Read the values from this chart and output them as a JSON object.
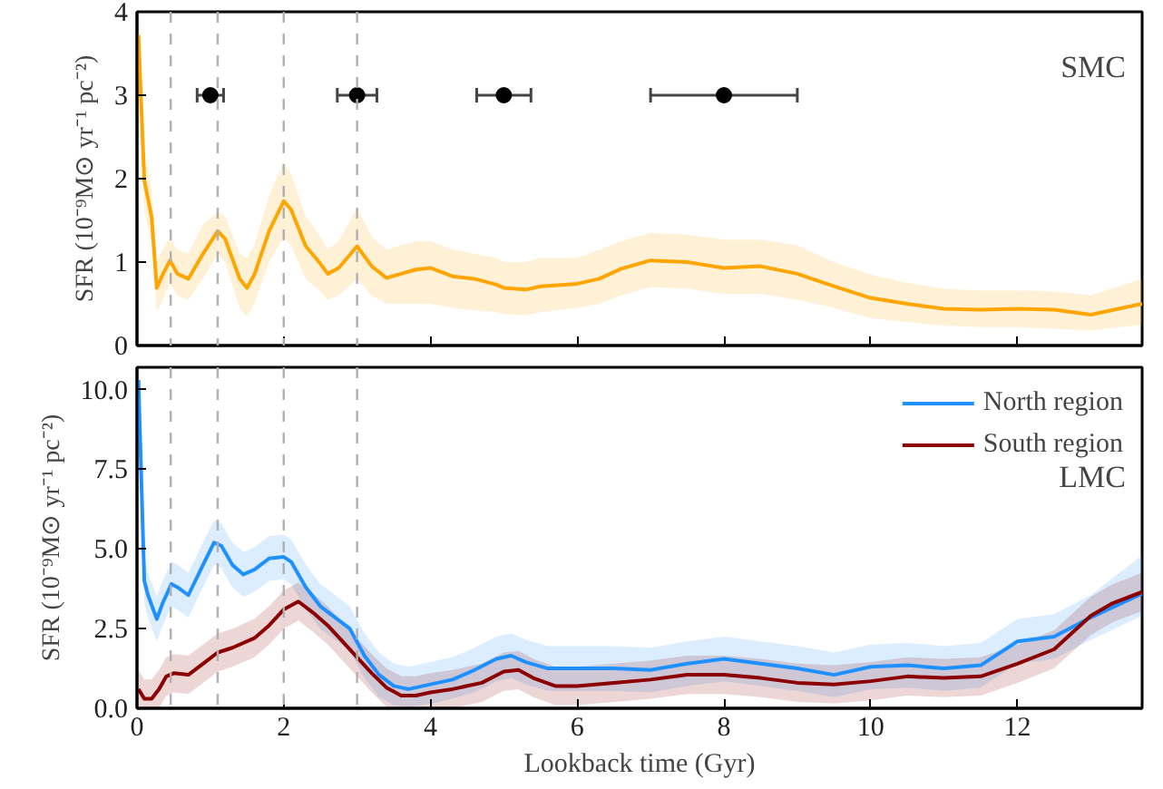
{
  "chart_data": [
    {
      "type": "line",
      "ylabel": "SFR (10⁻⁹M⊙ yr⁻¹ pc⁻²)",
      "xlim": [
        0,
        13.7
      ],
      "xticks": [
        0,
        2,
        4,
        6,
        8,
        10,
        12
      ],
      "ylim": [
        0,
        4
      ],
      "yticks": [
        0,
        1,
        2,
        3,
        4
      ],
      "tick_labels": "y",
      "grid": false,
      "legend": false,
      "annotations": [
        "SMC"
      ],
      "ref_lines": [
        {
          "axis": "x",
          "value": 0.46,
          "color": "#b0b0b0",
          "line_style": "dashed"
        },
        {
          "axis": "x",
          "value": 1.1,
          "color": "#b0b0b0",
          "line_style": "dashed"
        },
        {
          "axis": "x",
          "value": 2,
          "color": "#b0b0b0",
          "line_style": "dashed"
        },
        {
          "axis": "x",
          "value": 3,
          "color": "#b0b0b0",
          "line_style": "dashed"
        }
      ],
      "series": [
        {
          "color": "#ffa500",
          "x": [
            0.02,
            0.1,
            0.2,
            0.27,
            0.35,
            0.45,
            0.55,
            0.7,
            0.9,
            1.1,
            1.2,
            1.4,
            1.5,
            1.6,
            1.8,
            2.0,
            2.1,
            2.3,
            2.5,
            2.6,
            2.75,
            3.0,
            3.2,
            3.4,
            3.6,
            3.8,
            4.0,
            4.3,
            4.6,
            4.9,
            5.0,
            5.3,
            5.5,
            6.0,
            6.3,
            6.6,
            7.0,
            7.5,
            8.0,
            8.5,
            9.0,
            9.5,
            10.0,
            10.5,
            11.0,
            11.5,
            12.0,
            12.5,
            13.0,
            13.7
          ],
          "values": [
            3.72,
            1.98,
            1.54,
            0.69,
            0.85,
            1.02,
            0.86,
            0.8,
            1.1,
            1.37,
            1.28,
            0.8,
            0.69,
            0.85,
            1.37,
            1.73,
            1.63,
            1.19,
            0.98,
            0.86,
            0.93,
            1.19,
            0.95,
            0.81,
            0.86,
            0.91,
            0.93,
            0.83,
            0.8,
            0.73,
            0.69,
            0.67,
            0.71,
            0.74,
            0.8,
            0.92,
            1.02,
            1.0,
            0.93,
            0.95,
            0.86,
            0.71,
            0.57,
            0.5,
            0.44,
            0.43,
            0.44,
            0.43,
            0.37,
            0.5
          ],
          "upper": [
            4.0,
            2.3,
            1.85,
            1.0,
            1.15,
            1.3,
            1.15,
            1.1,
            1.45,
            1.6,
            1.55,
            1.1,
            1.05,
            1.2,
            1.8,
            2.2,
            2.05,
            1.55,
            1.3,
            1.15,
            1.25,
            1.65,
            1.3,
            1.15,
            1.2,
            1.25,
            1.25,
            1.15,
            1.1,
            1.05,
            1.0,
            1.0,
            1.05,
            1.05,
            1.15,
            1.25,
            1.35,
            1.33,
            1.27,
            1.27,
            1.2,
            1.0,
            0.85,
            0.75,
            0.68,
            0.66,
            0.66,
            0.65,
            0.6,
            0.8
          ],
          "lower": [
            3.3,
            1.6,
            1.25,
            0.4,
            0.55,
            0.75,
            0.6,
            0.55,
            0.8,
            1.1,
            1.0,
            0.45,
            0.35,
            0.5,
            1.0,
            1.3,
            1.2,
            0.8,
            0.65,
            0.55,
            0.6,
            0.8,
            0.6,
            0.5,
            0.5,
            0.5,
            0.5,
            0.45,
            0.42,
            0.4,
            0.38,
            0.36,
            0.4,
            0.45,
            0.5,
            0.6,
            0.7,
            0.68,
            0.62,
            0.62,
            0.55,
            0.45,
            0.33,
            0.28,
            0.24,
            0.22,
            0.22,
            0.2,
            0.18,
            0.25
          ]
        },
        {
          "type": "scatter",
          "color": "#000000",
          "marker": "circle",
          "x": [
            1,
            3,
            5,
            8
          ],
          "values": [
            3,
            3,
            3,
            3
          ],
          "xerrors": [
            0.18,
            0.27,
            0.37,
            1.0
          ]
        }
      ]
    },
    {
      "type": "line",
      "xlabel": "Lookback time (Gyr)",
      "ylabel": "SFR (10⁻⁹M⊙ yr⁻¹ pc⁻²)",
      "xlim": [
        0,
        13.7
      ],
      "xticks": [
        0,
        2,
        4,
        6,
        8,
        10,
        12
      ],
      "ylim": [
        0,
        10.7
      ],
      "yticks": [
        {
          "value": 0,
          "label": "0.0"
        },
        {
          "value": 2.5,
          "label": "2.5"
        },
        {
          "value": 5,
          "label": "5.0"
        },
        {
          "value": 7.5,
          "label": "7.5"
        },
        {
          "value": 10,
          "label": "10.0"
        }
      ],
      "grid": false,
      "legend": "top right",
      "annotations": [
        "LMC"
      ],
      "ref_lines": [
        {
          "axis": "x",
          "value": 0.46,
          "color": "#b0b0b0",
          "line_style": "dashed"
        },
        {
          "axis": "x",
          "value": 1.1,
          "color": "#b0b0b0",
          "line_style": "dashed"
        },
        {
          "axis": "x",
          "value": 2,
          "color": "#b0b0b0",
          "line_style": "dashed"
        },
        {
          "axis": "x",
          "value": 3,
          "color": "#b0b0b0",
          "line_style": "dashed"
        }
      ],
      "series": [
        {
          "name": "North region",
          "color": "#1e90ff",
          "x": [
            0.02,
            0.1,
            0.15,
            0.27,
            0.35,
            0.47,
            0.55,
            0.7,
            0.9,
            1.05,
            1.15,
            1.3,
            1.45,
            1.6,
            1.8,
            2.0,
            2.1,
            2.3,
            2.5,
            2.7,
            2.9,
            3.1,
            3.3,
            3.5,
            3.7,
            4.0,
            4.3,
            4.6,
            4.9,
            5.1,
            5.3,
            5.6,
            6.0,
            6.5,
            7.0,
            7.5,
            8.0,
            8.5,
            9.0,
            9.5,
            10.0,
            10.5,
            11.0,
            11.5,
            12.0,
            12.5,
            13.0,
            13.7
          ],
          "values": [
            10.3,
            4.0,
            3.55,
            2.8,
            3.3,
            3.9,
            3.8,
            3.55,
            4.5,
            5.2,
            5.1,
            4.5,
            4.2,
            4.35,
            4.7,
            4.75,
            4.6,
            3.8,
            3.2,
            2.85,
            2.5,
            1.65,
            1.05,
            0.7,
            0.6,
            0.75,
            0.9,
            1.2,
            1.55,
            1.65,
            1.45,
            1.25,
            1.25,
            1.25,
            1.2,
            1.4,
            1.55,
            1.4,
            1.25,
            1.05,
            1.3,
            1.35,
            1.25,
            1.35,
            2.1,
            2.25,
            2.85,
            3.6
          ],
          "upper": [
            10.6,
            4.7,
            4.25,
            3.5,
            4.0,
            4.6,
            4.5,
            4.25,
            5.2,
            5.9,
            5.8,
            5.2,
            4.9,
            5.05,
            5.4,
            5.45,
            5.3,
            4.5,
            3.9,
            3.55,
            3.2,
            2.35,
            1.75,
            1.4,
            1.3,
            1.45,
            1.6,
            1.9,
            2.25,
            2.35,
            2.15,
            1.95,
            1.95,
            1.95,
            1.9,
            2.1,
            2.25,
            2.1,
            1.95,
            1.75,
            2.0,
            2.05,
            1.95,
            2.05,
            2.8,
            2.95,
            3.55,
            4.8
          ],
          "lower": [
            10.0,
            3.3,
            2.85,
            2.1,
            2.6,
            3.2,
            3.1,
            2.85,
            3.8,
            4.5,
            4.4,
            3.8,
            3.5,
            3.65,
            4.0,
            4.05,
            3.9,
            3.1,
            2.5,
            2.15,
            1.8,
            0.95,
            0.35,
            0.1,
            0.05,
            0.15,
            0.3,
            0.5,
            0.85,
            0.95,
            0.75,
            0.55,
            0.55,
            0.55,
            0.5,
            0.7,
            0.85,
            0.7,
            0.55,
            0.35,
            0.6,
            0.65,
            0.55,
            0.65,
            1.4,
            1.55,
            2.15,
            2.9
          ]
        },
        {
          "name": "South region",
          "color": "#8b0000",
          "x": [
            0.02,
            0.1,
            0.2,
            0.3,
            0.4,
            0.5,
            0.7,
            0.9,
            1.1,
            1.3,
            1.6,
            1.8,
            2.0,
            2.2,
            2.4,
            2.6,
            2.8,
            3.0,
            3.2,
            3.4,
            3.6,
            3.8,
            4.0,
            4.3,
            4.7,
            5.0,
            5.2,
            5.4,
            5.7,
            6.0,
            6.5,
            7.0,
            7.5,
            8.0,
            8.5,
            9.0,
            9.5,
            10.0,
            10.5,
            11.0,
            11.5,
            12.0,
            12.5,
            13.0,
            13.3,
            13.7
          ],
          "values": [
            0.6,
            0.3,
            0.3,
            0.6,
            1.0,
            1.1,
            1.05,
            1.4,
            1.75,
            1.9,
            2.2,
            2.6,
            3.1,
            3.35,
            3.0,
            2.6,
            2.1,
            1.6,
            1.1,
            0.65,
            0.4,
            0.4,
            0.5,
            0.6,
            0.8,
            1.15,
            1.2,
            0.95,
            0.7,
            0.7,
            0.8,
            0.9,
            1.05,
            1.05,
            0.95,
            0.8,
            0.75,
            0.85,
            1.0,
            0.95,
            1.0,
            1.4,
            1.85,
            2.9,
            3.3,
            3.65
          ],
          "upper": [
            1.2,
            0.9,
            0.9,
            1.2,
            1.6,
            1.7,
            1.65,
            2.0,
            2.35,
            2.5,
            2.8,
            3.2,
            3.7,
            3.95,
            3.6,
            3.2,
            2.7,
            2.2,
            1.7,
            1.25,
            1.0,
            1.0,
            1.1,
            1.2,
            1.4,
            1.75,
            1.8,
            1.55,
            1.3,
            1.3,
            1.4,
            1.5,
            1.65,
            1.65,
            1.55,
            1.4,
            1.35,
            1.45,
            1.6,
            1.55,
            1.6,
            2.0,
            2.45,
            3.5,
            3.9,
            4.25
          ],
          "lower": [
            0.0,
            0.0,
            0.0,
            0.0,
            0.4,
            0.5,
            0.45,
            0.8,
            1.15,
            1.3,
            1.6,
            2.0,
            2.5,
            2.75,
            2.4,
            2.0,
            1.5,
            1.0,
            0.5,
            0.05,
            0.0,
            0.0,
            0.0,
            0.0,
            0.2,
            0.55,
            0.6,
            0.35,
            0.1,
            0.1,
            0.2,
            0.3,
            0.45,
            0.45,
            0.35,
            0.2,
            0.15,
            0.25,
            0.4,
            0.35,
            0.4,
            0.8,
            1.25,
            2.3,
            2.7,
            3.05
          ]
        }
      ]
    }
  ]
}
